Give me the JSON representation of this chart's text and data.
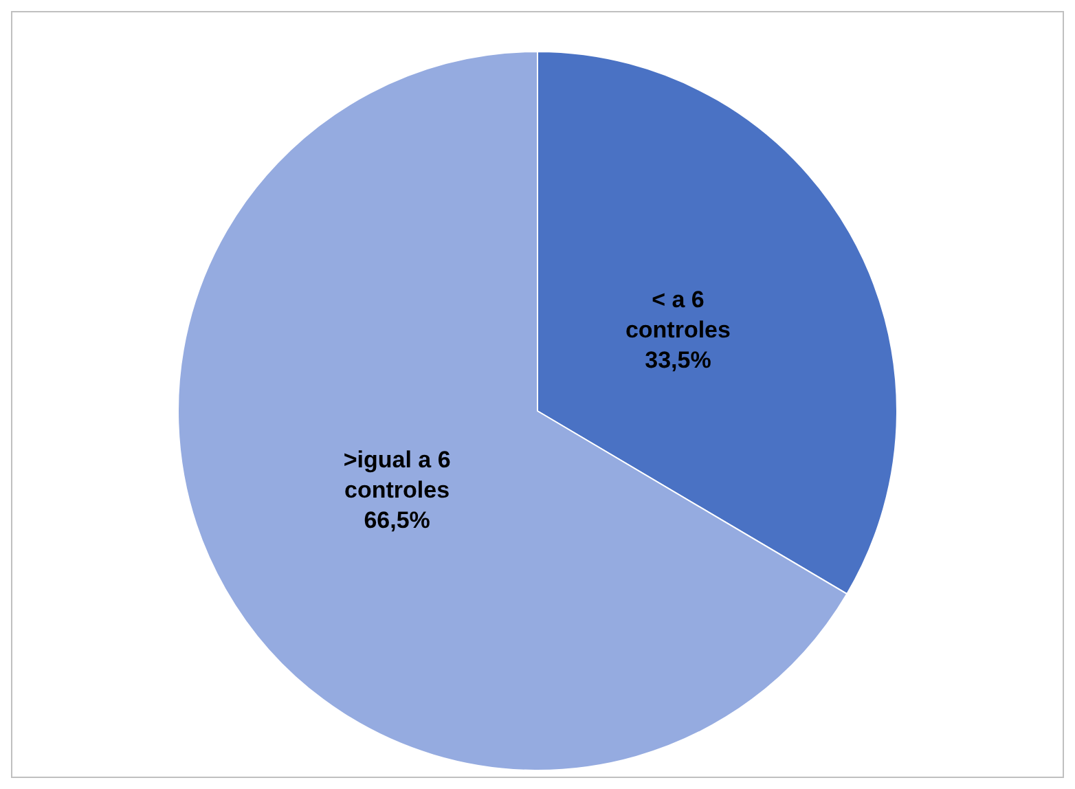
{
  "chart_data": {
    "type": "pie",
    "categories": [
      "< a 6 controles",
      ">igual a 6 controles"
    ],
    "values": [
      33.5,
      66.5
    ],
    "value_labels": [
      "33,5%",
      "66,5%"
    ],
    "colors": [
      "#4a72c4",
      "#95abe0"
    ],
    "legend": false
  }
}
